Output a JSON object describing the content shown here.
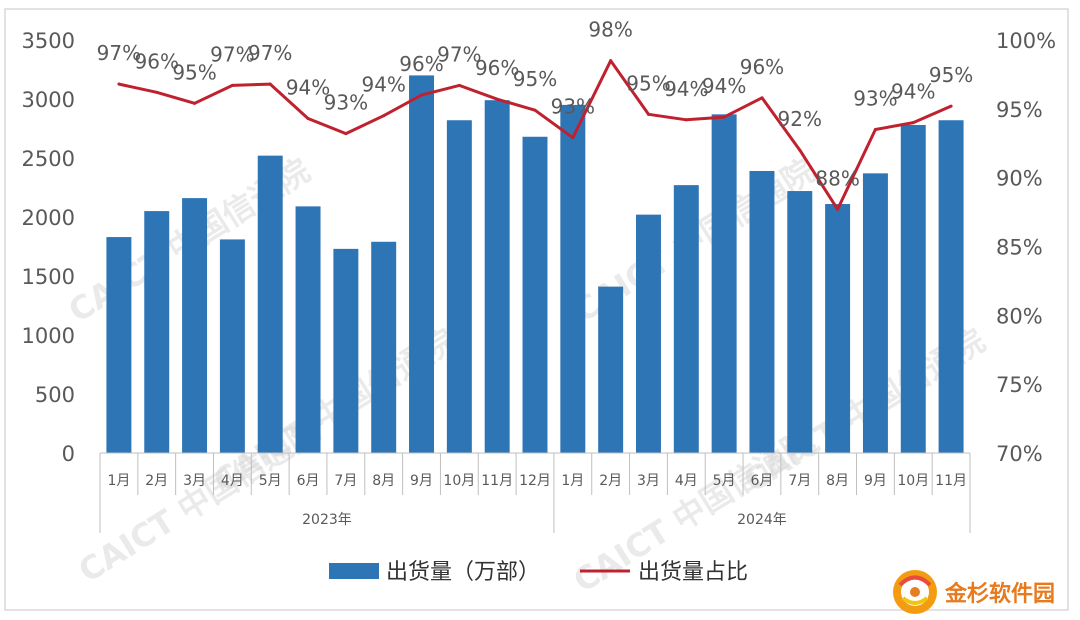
{
  "chart_data": {
    "type": "bar+line",
    "year_groups": [
      {
        "label": "2023年",
        "months": [
          "1月",
          "2月",
          "3月",
          "4月",
          "5月",
          "6月",
          "7月",
          "8月",
          "9月",
          "10月",
          "11月",
          "12月"
        ]
      },
      {
        "label": "2024年",
        "months": [
          "1月",
          "2月",
          "3月",
          "4月",
          "5月",
          "6月",
          "7月",
          "8月",
          "9月",
          "10月",
          "11月"
        ]
      }
    ],
    "series": [
      {
        "name": "出货量（万部）",
        "type": "bar",
        "axis": "left",
        "color": "#2e75b6",
        "values": [
          1830,
          2050,
          2160,
          1810,
          2520,
          2090,
          1730,
          1790,
          3200,
          2820,
          2990,
          2680,
          2950,
          1410,
          2020,
          2270,
          2870,
          2390,
          2220,
          2110,
          2370,
          2780,
          2820
        ]
      },
      {
        "name": "出货量占比",
        "type": "line",
        "axis": "right",
        "color": "#c0212f",
        "values": [
          96.8,
          96.2,
          95.4,
          96.7,
          96.8,
          94.3,
          93.2,
          94.5,
          96.0,
          96.7,
          95.7,
          94.9,
          92.9,
          98.5,
          94.6,
          94.2,
          94.4,
          95.8,
          92.0,
          87.7,
          93.5,
          94.0,
          95.2
        ],
        "labels": [
          "97%",
          "96%",
          "95%",
          "97%",
          "97%",
          "94%",
          "93%",
          "94%",
          "96%",
          "97%",
          "96%",
          "95%",
          "93%",
          "98%",
          "95%",
          "94%",
          "94%",
          "96%",
          "92%",
          "88%",
          "93%",
          "94%",
          "95%"
        ]
      }
    ],
    "left_axis": {
      "min": 0,
      "max": 3500,
      "ticks": [
        "0",
        "500",
        "1000",
        "1500",
        "2000",
        "2500",
        "3000",
        "3500"
      ]
    },
    "right_axis": {
      "min": 70,
      "max": 100,
      "ticks": [
        "70%",
        "75%",
        "80%",
        "85%",
        "90%",
        "95%",
        "100%"
      ]
    },
    "legend_position": "bottom",
    "grid": false
  },
  "watermark": "CAICT 中国信通院",
  "brand": {
    "name": "金杉软件园"
  }
}
